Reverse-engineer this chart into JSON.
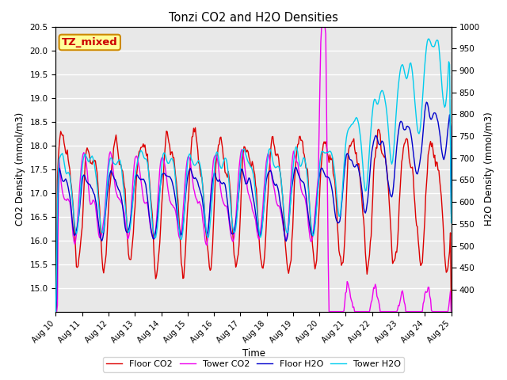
{
  "title": "Tonzi CO2 and H2O Densities",
  "xlabel": "Time",
  "ylabel_left": "CO2 Density (mmol/m3)",
  "ylabel_right": "H2O Density (mmol/m3)",
  "annotation_text": "TZ_mixed",
  "annotation_color": "#cc0000",
  "annotation_bg": "#ffff99",
  "annotation_border": "#cc8800",
  "x_tick_labels": [
    "Aug 10",
    "Aug 11",
    "Aug 12",
    "Aug 13",
    "Aug 14",
    "Aug 15",
    "Aug 16",
    "Aug 17",
    "Aug 18",
    "Aug 19",
    "Aug 20",
    "Aug 21",
    "Aug 22",
    "Aug 23",
    "Aug 24",
    "Aug 25"
  ],
  "ylim_left": [
    14.5,
    20.5
  ],
  "ylim_right": [
    350,
    1000
  ],
  "yticks_left": [
    15.0,
    15.5,
    16.0,
    16.5,
    17.0,
    17.5,
    18.0,
    18.5,
    19.0,
    19.5,
    20.0,
    20.5
  ],
  "yticks_right": [
    400,
    450,
    500,
    550,
    600,
    650,
    700,
    750,
    800,
    850,
    900,
    950,
    1000
  ],
  "legend_labels": [
    "Floor CO2",
    "Tower CO2",
    "Floor H2O",
    "Tower H2O"
  ],
  "legend_colors": [
    "#dd0000",
    "#ee00ee",
    "#0000cc",
    "#00ccee"
  ],
  "line_width": 1.0,
  "background_color": "#ffffff",
  "plot_bg_color": "#e8e8e8",
  "grid_color": "#ffffff",
  "n_points": 480
}
